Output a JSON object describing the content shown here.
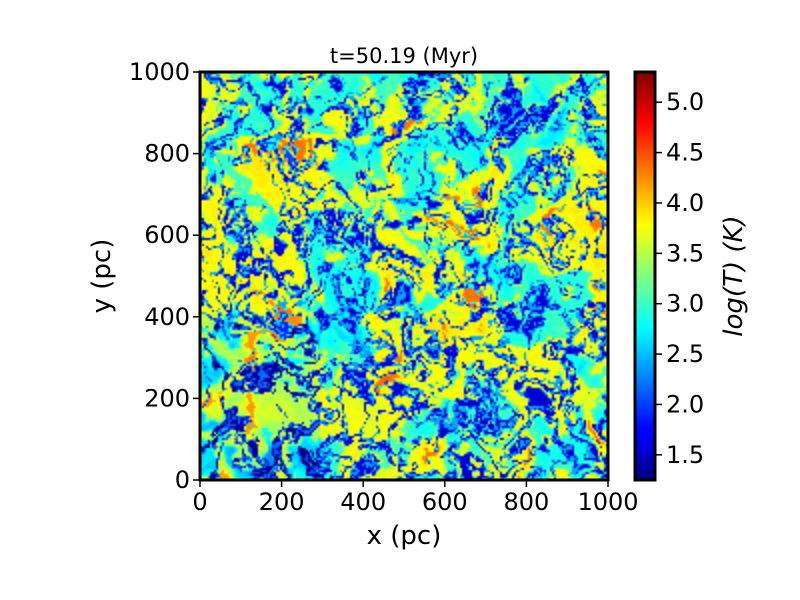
{
  "chart_data": {
    "type": "heatmap",
    "title": "t=50.19 (Myr)",
    "xlabel": "x (pc)",
    "ylabel": "y (pc)",
    "xlim": [
      0,
      1000
    ],
    "ylim": [
      0,
      1000
    ],
    "x_ticks": [
      0,
      200,
      400,
      600,
      800,
      1000
    ],
    "y_ticks": [
      0,
      200,
      400,
      600,
      800,
      1000
    ],
    "colorbar": {
      "label": "log(T) (K)",
      "colormap": "jet",
      "range": [
        1.25,
        5.3
      ],
      "ticks": [
        1.5,
        2.0,
        2.5,
        3.0,
        3.5,
        4.0,
        4.5,
        5.0
      ],
      "tick_labels": [
        "1.5",
        "2.0",
        "2.5",
        "3.0",
        "3.5",
        "4.0",
        "4.5",
        "5.0"
      ]
    },
    "field_description_values": {
      "background_logT": 3.7,
      "cold_filament_logT": 1.6,
      "intermediate_logT": 2.9,
      "hot_spot_logT": 4.6
    }
  }
}
